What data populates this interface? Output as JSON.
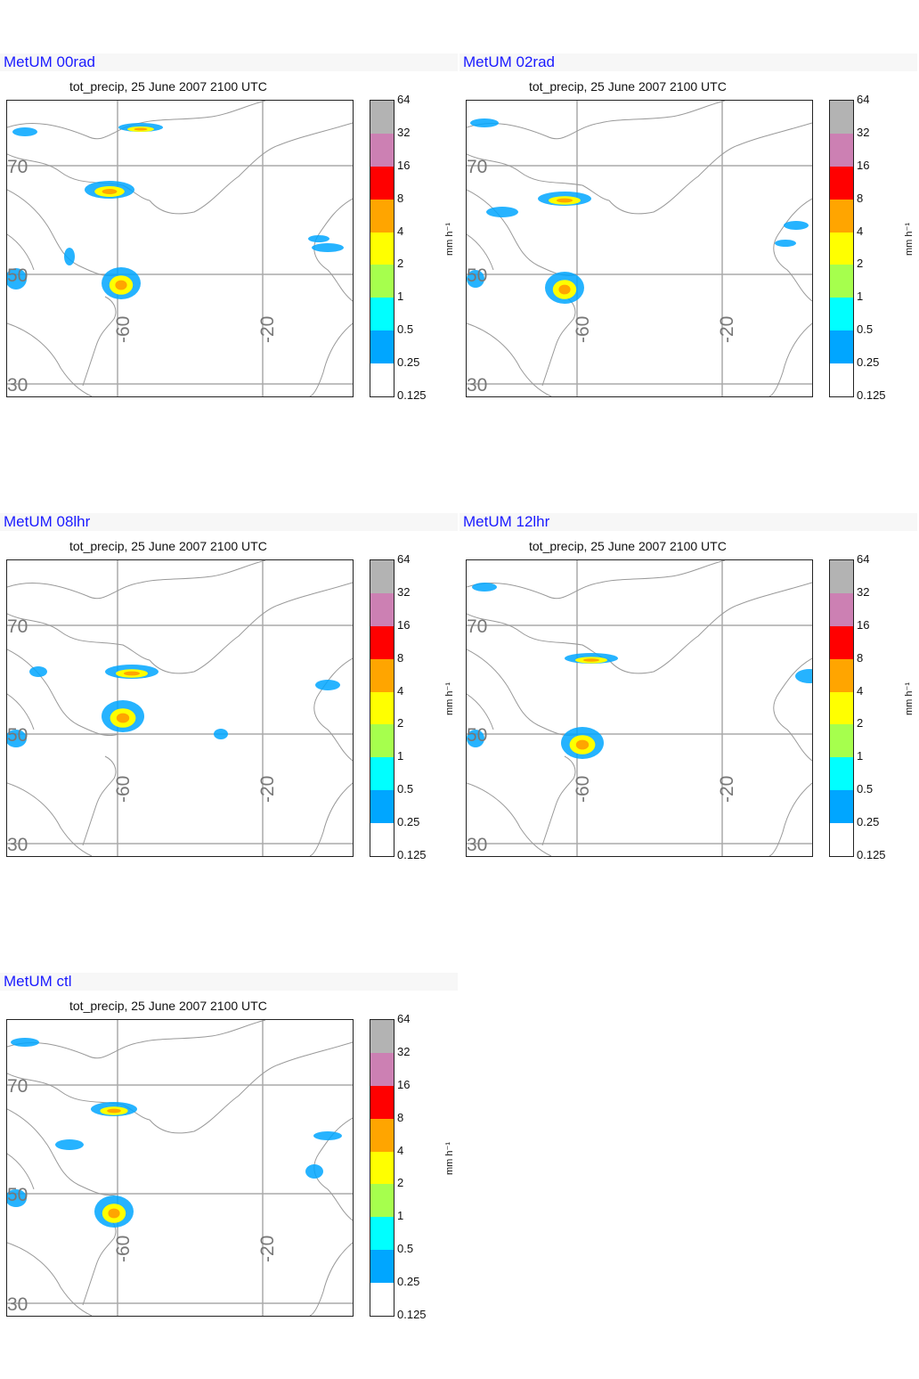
{
  "panels": [
    {
      "title": "MetUM 00rad",
      "subtitle": "tot_precip, 25 June 2007 2100 UTC"
    },
    {
      "title": "MetUM 02rad",
      "subtitle": "tot_precip, 25 June 2007 2100 UTC"
    },
    {
      "title": "MetUM 08lhr",
      "subtitle": "tot_precip, 25 June 2007 2100 UTC"
    },
    {
      "title": "MetUM 12lhr",
      "subtitle": "tot_precip, 25 June 2007 2100 UTC"
    },
    {
      "title": "MetUM ctl",
      "subtitle": "tot_precip, 25 June 2007 2100 UTC"
    }
  ],
  "gridlabels": {
    "lat70": "70",
    "lat50": "50",
    "lat30": "30",
    "lon60": "-60",
    "lon20": "-20"
  },
  "colorbar": {
    "units": "mm h⁻¹",
    "levels": [
      "64",
      "32",
      "16",
      "8",
      "4",
      "2",
      "1",
      "0.5",
      "0.25",
      "0.125"
    ],
    "colors": [
      "#b3b3b3",
      "#cc80b3",
      "#ff0000",
      "#ffa500",
      "#ffff00",
      "#a6ff4d",
      "#00ffff",
      "#00a6ff",
      "#ffffff"
    ]
  }
}
